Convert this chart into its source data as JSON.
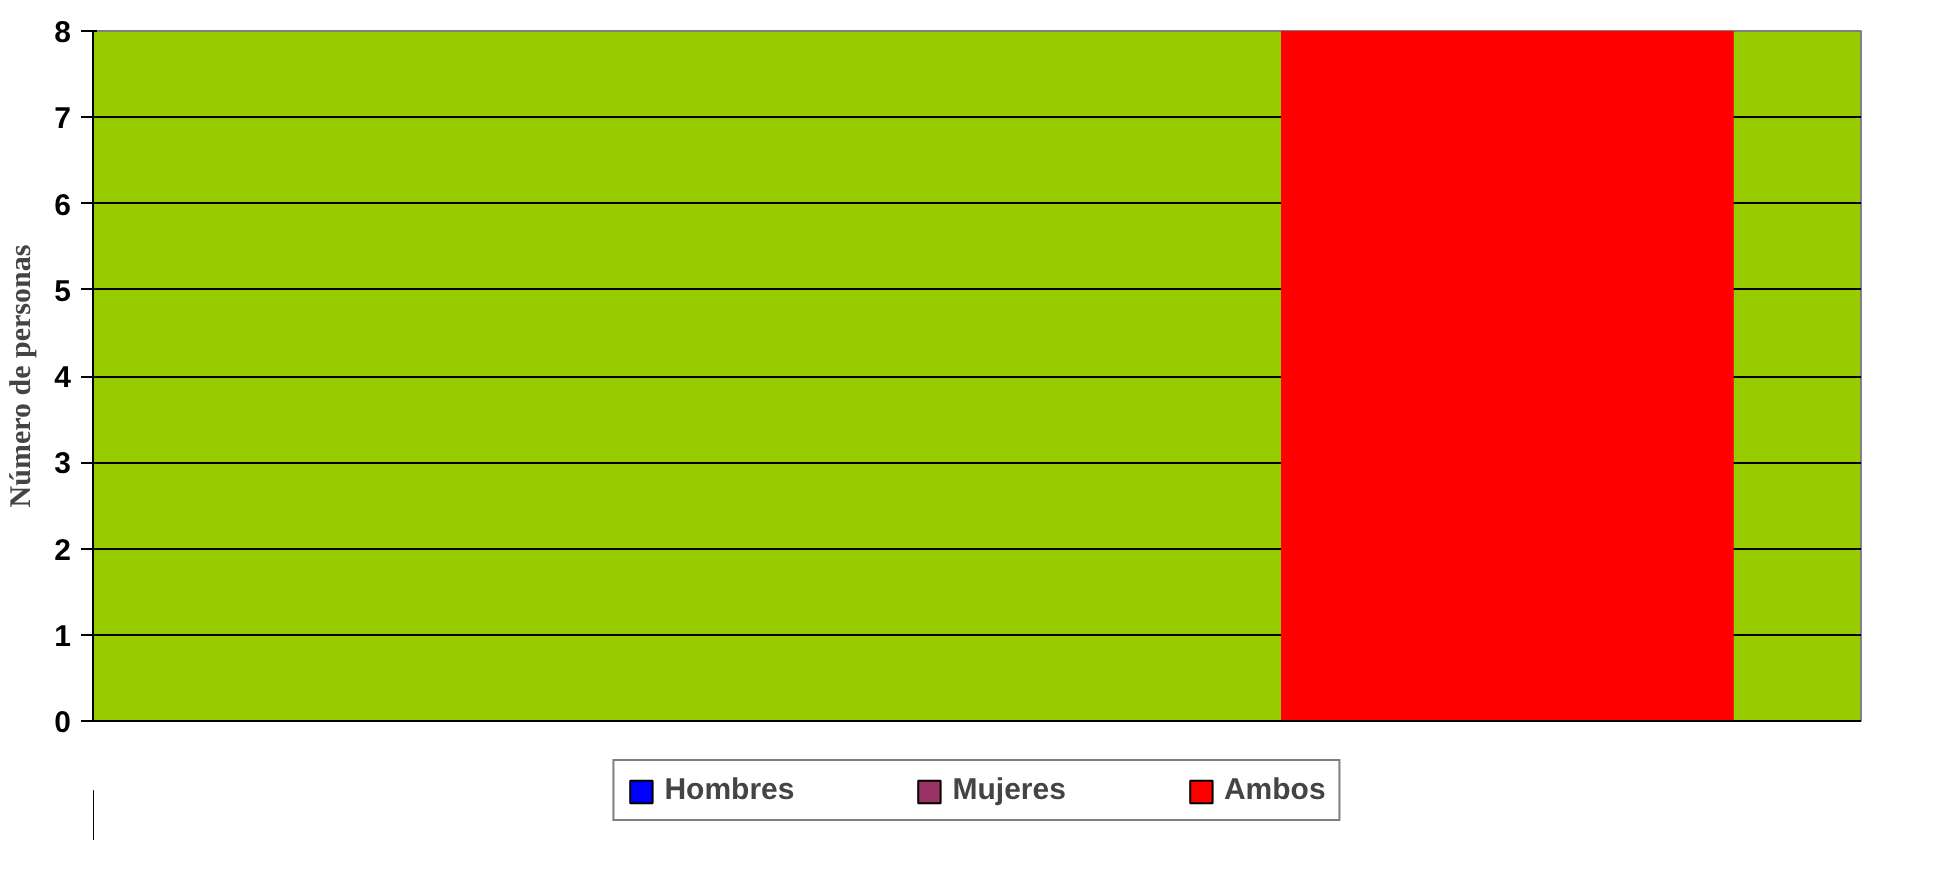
{
  "chart_data": {
    "type": "bar",
    "ylabel": "Número de personas",
    "categories": [
      null
    ],
    "series": [
      {
        "name": "Hombres",
        "color": "#0000ff",
        "values": [
          0
        ]
      },
      {
        "name": "Mujeres",
        "color": "#993366",
        "values": [
          0
        ]
      },
      {
        "name": "Ambos",
        "color": "#ff0000",
        "values": [
          8
        ]
      }
    ],
    "ylim": [
      0,
      8
    ],
    "yticks": [
      0,
      1,
      2,
      3,
      4,
      5,
      6,
      7,
      8
    ],
    "grid": "y",
    "legend": "bottom"
  }
}
